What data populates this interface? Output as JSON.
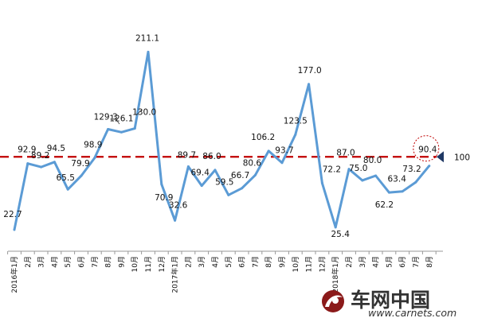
{
  "chart_data": {
    "type": "line",
    "x": [
      "2016年1月",
      "2月",
      "3月",
      "4月",
      "5月",
      "6月",
      "7月",
      "8月",
      "9月",
      "10月",
      "11月",
      "12月",
      "2017年1月",
      "2月",
      "3月",
      "4月",
      "5月",
      "6月",
      "7月",
      "8月",
      "9月",
      "10月",
      "11月",
      "12月",
      "2018年1月",
      "2月",
      "3月",
      "4月",
      "5月",
      "6月",
      "7月",
      "8月"
    ],
    "series": [
      {
        "values": [
          22.7,
          92.9,
          89.2,
          94.5,
          65.5,
          79.9,
          98.9,
          129.3,
          126.1,
          130.0,
          211.1,
          70.9,
          32.6,
          89.7,
          69.4,
          86.0,
          59.5,
          66.7,
          80.6,
          106.2,
          93.7,
          123.5,
          177.0,
          72.2,
          25.4,
          87.0,
          75.0,
          80.0,
          62.2,
          63.4,
          73.2,
          90.4
        ],
        "labels": [
          "22.7",
          "92.9",
          "89.2",
          "94.5",
          "65.5",
          "79.9",
          "98.9",
          "129.3",
          "126.1",
          "130.0",
          "211.1",
          "70.9",
          "32.6",
          "89.7",
          "69.4",
          "86.0",
          "59.5",
          "66.7",
          "80.6",
          "106.2",
          "93.7",
          "123.5",
          "177.0",
          "72.2",
          "25.4",
          "87.0",
          "75.0",
          "80.0",
          "62.2",
          "63.4",
          "73.2",
          "90.4"
        ],
        "color": "#5b9bd5"
      }
    ],
    "reference_line": {
      "value": 100,
      "label": "100",
      "color": "#c00000",
      "style": "dashed"
    },
    "highlight_point_index": 31,
    "ylim": [
      0,
      225
    ],
    "grid": false,
    "title": "",
    "xlabel": "",
    "ylabel": ""
  },
  "watermark": {
    "text_cn": "车网中国",
    "url": "www.carnets.com"
  }
}
